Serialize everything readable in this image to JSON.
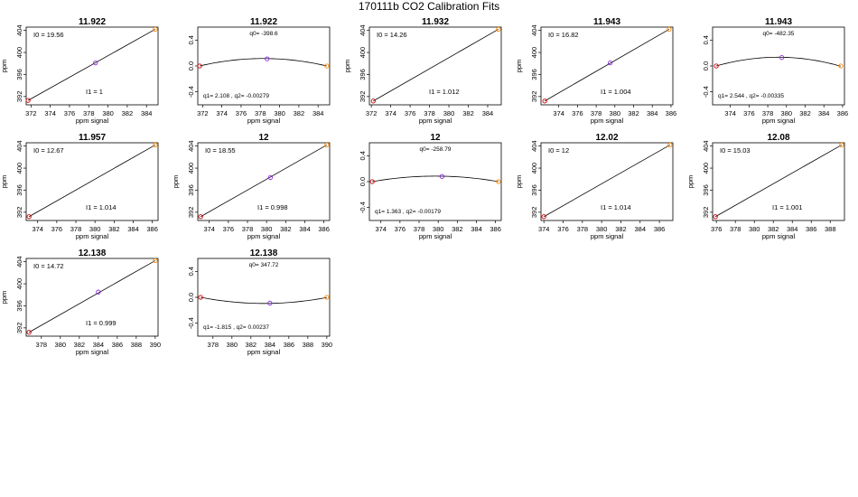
{
  "title": "170111b   CO2 Calibration Fits",
  "colors": {
    "low": "#cc0000",
    "mid": "#8a2be2",
    "high": "#ff8c00",
    "line": "#000000"
  },
  "chart_data": [
    {
      "type": "line",
      "title": "11.922",
      "kind": "linear",
      "ylabel": "ppm",
      "xlabel": "ppm signal",
      "xlim": [
        371.5,
        385.2
      ],
      "ylim": [
        390.5,
        404.6
      ],
      "xticks": [
        372,
        374,
        376,
        378,
        380,
        382,
        384
      ],
      "yticks": [
        392,
        396,
        400,
        404
      ],
      "points": [
        [
          371.7,
          391.3
        ],
        [
          378.7,
          398.1
        ],
        [
          384.9,
          404.2
        ]
      ],
      "line": [
        [
          371.7,
          391.3
        ],
        [
          384.9,
          404.2
        ]
      ],
      "label_a": "I0 =  19.56",
      "label_b": "I1 =  1"
    },
    {
      "type": "line",
      "title": "11.922",
      "kind": "quadratic",
      "ylabel": "",
      "xlabel": "ppm signal",
      "xlim": [
        371.5,
        385.2
      ],
      "ylim": [
        -0.6,
        0.6
      ],
      "xticks": [
        372,
        374,
        376,
        378,
        380,
        382,
        384
      ],
      "yticks": [
        -0.4,
        0.0,
        0.4
      ],
      "points": [
        [
          371.7,
          0.0
        ],
        [
          378.7,
          0.11
        ],
        [
          384.9,
          0.0
        ]
      ],
      "vertex": [
        378.3,
        0.115
      ],
      "label_a": "q0= -398.6",
      "label_b": "q1= 2.108 , q2= -0.00279"
    },
    {
      "type": "line",
      "title": "11.932",
      "kind": "linear",
      "ylabel": "ppm",
      "xlabel": "ppm signal",
      "xlim": [
        371.8,
        385.4
      ],
      "ylim": [
        390.5,
        404.6
      ],
      "xticks": [
        372,
        374,
        376,
        378,
        380,
        382,
        384
      ],
      "yticks": [
        392,
        396,
        400,
        404
      ],
      "points": [
        [
          372.2,
          391.2
        ],
        [
          385.1,
          404.2
        ]
      ],
      "line": [
        [
          372.2,
          391.2
        ],
        [
          385.1,
          404.2
        ]
      ],
      "label_a": "I0 =  14.26",
      "label_b": "I1 =  1.012"
    },
    {
      "type": "line",
      "title": "11.943",
      "kind": "linear",
      "ylabel": "ppm",
      "xlabel": "ppm signal",
      "xlim": [
        372.1,
        386.2
      ],
      "ylim": [
        390.5,
        404.6
      ],
      "xticks": [
        374,
        376,
        378,
        380,
        382,
        384,
        386
      ],
      "yticks": [
        392,
        396,
        400,
        404
      ],
      "points": [
        [
          372.5,
          391.2
        ],
        [
          379.5,
          398.1
        ],
        [
          385.8,
          404.2
        ]
      ],
      "line": [
        [
          372.5,
          391.2
        ],
        [
          385.8,
          404.2
        ]
      ],
      "label_a": "I0 =  16.82",
      "label_b": "I1 =  1.004"
    },
    {
      "type": "line",
      "title": "11.943",
      "kind": "quadratic",
      "ylabel": "",
      "xlabel": "ppm signal",
      "xlim": [
        372.1,
        386.2
      ],
      "ylim": [
        -0.6,
        0.6
      ],
      "xticks": [
        374,
        376,
        378,
        380,
        382,
        384,
        386
      ],
      "yticks": [
        -0.4,
        0.0,
        0.4
      ],
      "points": [
        [
          372.5,
          0.0
        ],
        [
          379.5,
          0.13
        ],
        [
          385.8,
          0.0
        ]
      ],
      "vertex": [
        379.1,
        0.135
      ],
      "label_a": "q0= -482.35",
      "label_b": "q1= 2.544 , q2= -0.00335"
    },
    {
      "type": "line",
      "title": "11.957",
      "kind": "linear",
      "ylabel": "ppm",
      "xlabel": "ppm signal",
      "xlim": [
        372.8,
        386.6
      ],
      "ylim": [
        390.5,
        404.6
      ],
      "xticks": [
        374,
        376,
        378,
        380,
        382,
        384,
        386
      ],
      "yticks": [
        392,
        396,
        400,
        404
      ],
      "points": [
        [
          373.1,
          391.2
        ],
        [
          386.3,
          404.2
        ]
      ],
      "line": [
        [
          373.1,
          391.2
        ],
        [
          386.3,
          404.2
        ]
      ],
      "label_a": "I0 =  12.67",
      "label_b": "I1 =  1.014"
    },
    {
      "type": "line",
      "title": "12",
      "kind": "linear",
      "ylabel": "ppm",
      "xlabel": "ppm signal",
      "xlim": [
        372.8,
        386.6
      ],
      "ylim": [
        390.5,
        404.6
      ],
      "xticks": [
        374,
        376,
        378,
        380,
        382,
        384,
        386
      ],
      "yticks": [
        392,
        396,
        400,
        404
      ],
      "points": [
        [
          373.1,
          391.2
        ],
        [
          380.4,
          398.3
        ],
        [
          386.3,
          404.2
        ]
      ],
      "line": [
        [
          373.1,
          391.2
        ],
        [
          386.3,
          404.2
        ]
      ],
      "label_a": "I0 =  18.55",
      "label_b": "I1 =  0.998"
    },
    {
      "type": "line",
      "title": "12",
      "kind": "quadratic",
      "ylabel": "",
      "xlabel": "ppm signal",
      "xlim": [
        372.8,
        386.6
      ],
      "ylim": [
        -0.6,
        0.6
      ],
      "xticks": [
        374,
        376,
        378,
        380,
        382,
        384,
        386
      ],
      "yticks": [
        -0.4,
        0.0,
        0.4
      ],
      "points": [
        [
          373.1,
          0.0
        ],
        [
          380.4,
          0.08
        ],
        [
          386.3,
          0.0
        ]
      ],
      "vertex": [
        379.7,
        0.085
      ],
      "label_a": "q0= -258.79",
      "label_b": "q1= 1.363 , q2= -0.00179"
    },
    {
      "type": "line",
      "title": "12.02",
      "kind": "linear",
      "ylabel": "ppm",
      "xlabel": "ppm signal",
      "xlim": [
        373.7,
        387.4
      ],
      "ylim": [
        390.5,
        404.6
      ],
      "xticks": [
        374,
        376,
        378,
        380,
        382,
        384,
        386
      ],
      "yticks": [
        392,
        396,
        400,
        404
      ],
      "points": [
        [
          374.0,
          391.2
        ],
        [
          387.1,
          404.2
        ]
      ],
      "line": [
        [
          374.0,
          391.2
        ],
        [
          387.1,
          404.2
        ]
      ],
      "label_a": "I0 =  12",
      "label_b": "I1 =  1.014"
    },
    {
      "type": "line",
      "title": "12.08",
      "kind": "linear",
      "ylabel": "ppm",
      "xlabel": "ppm signal",
      "xlim": [
        375.6,
        389.5
      ],
      "ylim": [
        390.5,
        404.6
      ],
      "xticks": [
        376,
        378,
        380,
        382,
        384,
        386,
        388
      ],
      "yticks": [
        392,
        396,
        400,
        404
      ],
      "points": [
        [
          375.9,
          391.2
        ],
        [
          389.2,
          404.2
        ]
      ],
      "line": [
        [
          375.9,
          391.2
        ],
        [
          389.2,
          404.2
        ]
      ],
      "label_a": "I0 =  15.03",
      "label_b": "I1 =  1.001"
    },
    {
      "type": "line",
      "title": "12.138",
      "kind": "linear",
      "ylabel": "ppm",
      "xlabel": "ppm signal",
      "xlim": [
        376.4,
        390.3
      ],
      "ylim": [
        390.5,
        404.6
      ],
      "xticks": [
        378,
        380,
        382,
        384,
        386,
        388,
        390
      ],
      "yticks": [
        392,
        396,
        400,
        404
      ],
      "points": [
        [
          376.7,
          391.2
        ],
        [
          384.0,
          398.5
        ],
        [
          390.0,
          404.2
        ]
      ],
      "line": [
        [
          376.7,
          391.2
        ],
        [
          390.0,
          404.2
        ]
      ],
      "label_a": "I0 =  14.72",
      "label_b": "I1 =  0.999"
    },
    {
      "type": "line",
      "title": "12.138",
      "kind": "quadratic",
      "ylabel": "",
      "xlabel": "ppm signal",
      "xlim": [
        376.4,
        390.3
      ],
      "ylim": [
        -0.6,
        0.6
      ],
      "xticks": [
        378,
        380,
        382,
        384,
        386,
        388,
        390
      ],
      "yticks": [
        -0.4,
        0.0,
        0.4
      ],
      "points": [
        [
          376.7,
          0.0
        ],
        [
          384.0,
          -0.09
        ],
        [
          390.0,
          0.0
        ]
      ],
      "vertex": [
        383.4,
        -0.095
      ],
      "label_a": "q0= 347.72",
      "label_b": "q1= -1.815 , q2= 0.00237"
    }
  ]
}
